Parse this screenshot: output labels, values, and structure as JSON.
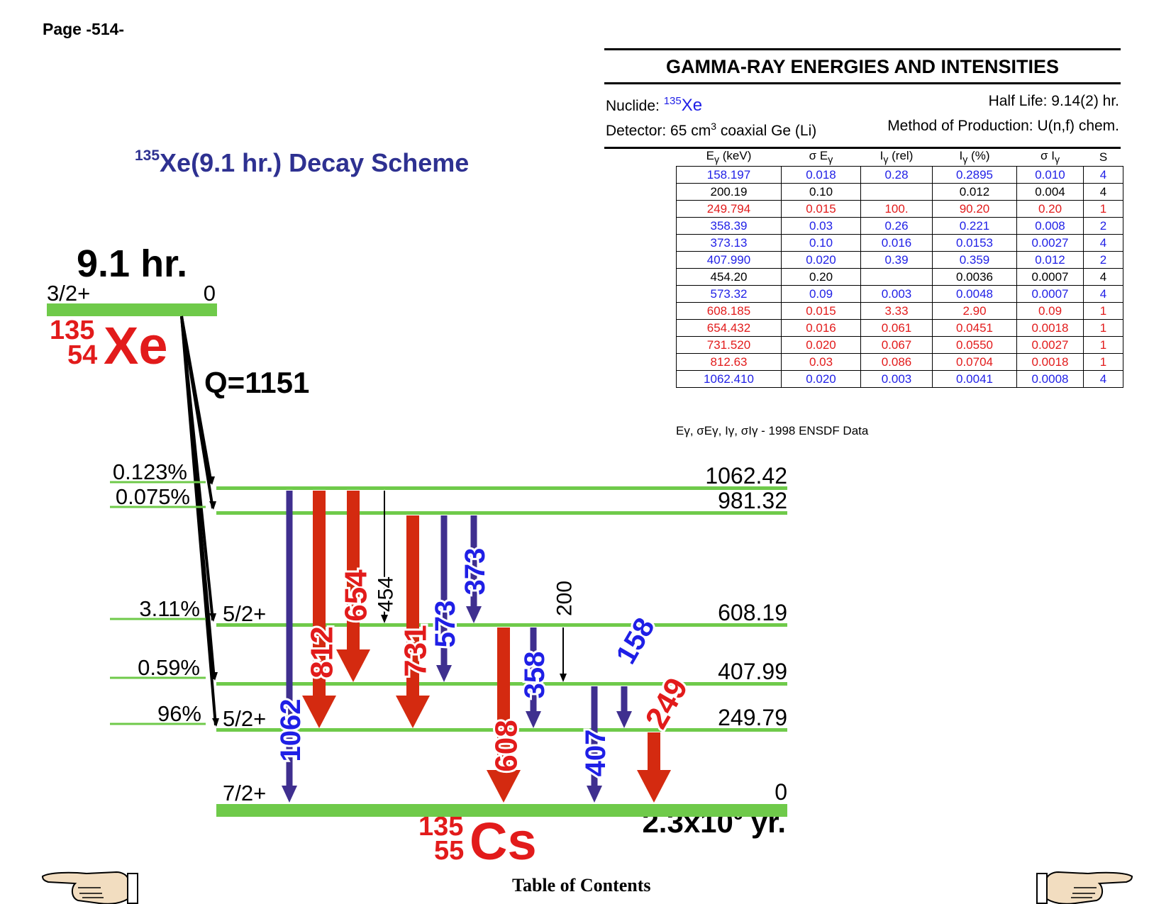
{
  "page_label": "Page -514-",
  "diagram": {
    "title_mass": "135",
    "title_rest": "Xe(9.1 hr.) Decay Scheme",
    "parent": {
      "half_life": "9.1 hr.",
      "spin": "3/2+",
      "energy": "0",
      "mass": "135",
      "z": "54",
      "symbol": "Xe",
      "q_value": "Q=1151"
    },
    "daughter": {
      "mass": "135",
      "z": "55",
      "symbol": "Cs",
      "half_life_base": "2.3x10",
      "half_life_exp": "6",
      "half_life_unit": " yr."
    },
    "levels": [
      {
        "energy": 1062.42,
        "label": "1062.42",
        "spin": "",
        "feed": "0.123%"
      },
      {
        "energy": 981.32,
        "label": "981.32",
        "spin": "",
        "feed": "0.075%"
      },
      {
        "energy": 608.19,
        "label": "608.19",
        "spin": "5/2+",
        "feed": "3.11%"
      },
      {
        "energy": 407.99,
        "label": "407.99",
        "spin": "",
        "feed": "0.59%"
      },
      {
        "energy": 249.79,
        "label": "249.79",
        "spin": "5/2+",
        "feed": "96%"
      },
      {
        "energy": 0,
        "label": "0",
        "spin": "7/2+",
        "feed": ""
      }
    ],
    "transitions": [
      {
        "label": "1062",
        "from": 1062.42,
        "to": 0,
        "color": "#3f2f8f",
        "label_color": "#1f1fe6"
      },
      {
        "label": "812",
        "from": 1062.42,
        "to": 249.79,
        "color": "#d42a10",
        "label_color": "#e21b1b"
      },
      {
        "label": "654",
        "from": 1062.42,
        "to": 407.99,
        "color": "#d42a10",
        "label_color": "#e21b1b"
      },
      {
        "label": "454",
        "from": 1062.42,
        "to": 608.19,
        "color": "#000000",
        "label_color": "#000000"
      },
      {
        "label": "731",
        "from": 981.32,
        "to": 249.79,
        "color": "#d42a10",
        "label_color": "#e21b1b"
      },
      {
        "label": "573",
        "from": 981.32,
        "to": 407.99,
        "color": "#3f2f8f",
        "label_color": "#1f1fe6"
      },
      {
        "label": "373",
        "from": 981.32,
        "to": 608.19,
        "color": "#3f2f8f",
        "label_color": "#1f1fe6"
      },
      {
        "label": "608",
        "from": 608.19,
        "to": 0,
        "color": "#d42a10",
        "label_color": "#e21b1b"
      },
      {
        "label": "358",
        "from": 608.19,
        "to": 249.79,
        "color": "#3f2f8f",
        "label_color": "#1f1fe6"
      },
      {
        "label": "200",
        "from": 608.19,
        "to": 407.99,
        "color": "#000000",
        "label_color": "#000000"
      },
      {
        "label": "407",
        "from": 407.99,
        "to": 0,
        "color": "#3f2f8f",
        "label_color": "#1f1fe6"
      },
      {
        "label": "158",
        "from": 407.99,
        "to": 249.79,
        "color": "#3f2f8f",
        "label_color": "#1f1fe6"
      },
      {
        "label": "249",
        "from": 249.79,
        "to": 0,
        "color": "#d42a10",
        "label_color": "#e21b1b"
      }
    ]
  },
  "gamma_table": {
    "header_title": "GAMMA-RAY ENERGIES AND INTENSITIES",
    "nuclide_label": "Nuclide: ",
    "nuclide_mass": "135",
    "nuclide_symbol": "Xe",
    "half_life": "Half Life: 9.14(2) hr.",
    "detector_prefix": "Detector: 65 cm",
    "detector_sup": "3",
    "detector_suffix": " coaxial Ge (Li)",
    "production": "Method of Production: U(n,f) chem.",
    "columns": [
      "Eγ (keV)",
      "σ Eγ",
      "Iγ (rel)",
      "Iγ (%)",
      "σ Iγ",
      "S"
    ],
    "rows": [
      {
        "cells": [
          "158.197",
          "0.018",
          "0.28",
          "0.2895",
          "0.010",
          "4"
        ],
        "color": "blue"
      },
      {
        "cells": [
          "200.19",
          "0.10",
          "",
          "0.012",
          "0.004",
          "4"
        ],
        "color": "black"
      },
      {
        "cells": [
          "249.794",
          "0.015",
          "100.",
          "90.20",
          "0.20",
          "1"
        ],
        "color": "red"
      },
      {
        "cells": [
          "358.39",
          "0.03",
          "0.26",
          "0.221",
          "0.008",
          "2"
        ],
        "color": "blue"
      },
      {
        "cells": [
          "373.13",
          "0.10",
          "0.016",
          "0.0153",
          "0.0027",
          "4"
        ],
        "color": "blue"
      },
      {
        "cells": [
          "407.990",
          "0.020",
          "0.39",
          "0.359",
          "0.012",
          "2"
        ],
        "color": "blue"
      },
      {
        "cells": [
          "454.20",
          "0.20",
          "",
          "0.0036",
          "0.0007",
          "4"
        ],
        "color": "black"
      },
      {
        "cells": [
          "573.32",
          "0.09",
          "0.003",
          "0.0048",
          "0.0007",
          "4"
        ],
        "color": "blue"
      },
      {
        "cells": [
          "608.185",
          "0.015",
          "3.33",
          "2.90",
          "0.09",
          "1"
        ],
        "color": "red"
      },
      {
        "cells": [
          "654.432",
          "0.016",
          "0.061",
          "0.0451",
          "0.0018",
          "1"
        ],
        "color": "red"
      },
      {
        "cells": [
          "731.520",
          "0.020",
          "0.067",
          "0.0550",
          "0.0027",
          "1"
        ],
        "color": "red"
      },
      {
        "cells": [
          "812.63",
          "0.03",
          "0.086",
          "0.0704",
          "0.0018",
          "1"
        ],
        "color": "red"
      },
      {
        "cells": [
          "1062.410",
          "0.020",
          "0.003",
          "0.0041",
          "0.0008",
          "4"
        ],
        "color": "blue"
      }
    ],
    "note": "Eγ, σEγ, Iγ, σIγ - 1998 ENSDF Data"
  },
  "footer": {
    "toc_label": "Table of Contents",
    "prev_icon": "pointing-hand-left-icon",
    "next_icon": "pointing-hand-right-icon"
  }
}
